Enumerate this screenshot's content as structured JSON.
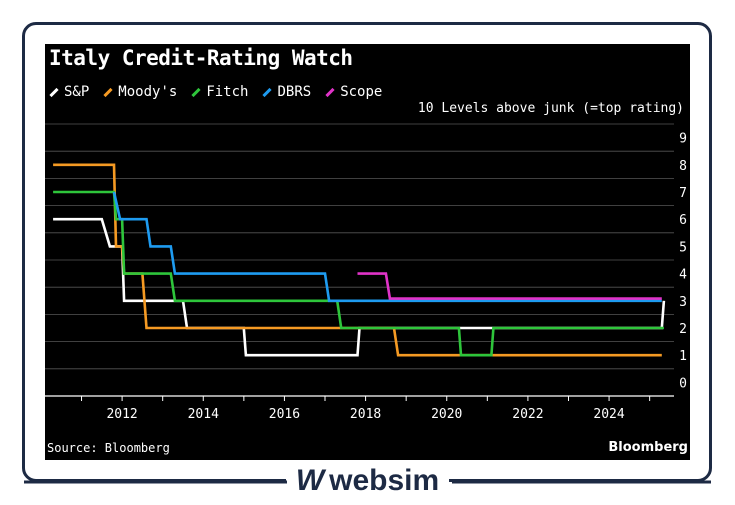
{
  "chart_data": {
    "type": "line",
    "title": "Italy Credit-Rating Watch",
    "ylabel": "10 Levels above junk (=top rating)",
    "xlim": [
      2010.1,
      2025.6
    ],
    "ylim": [
      -0.5,
      9.5
    ],
    "y_ticks": [
      "0",
      "1",
      "2",
      "3",
      "4",
      "5",
      "6",
      "7",
      "8",
      "9"
    ],
    "x_ticks": [
      "2012",
      "2014",
      "2016",
      "2018",
      "2020",
      "2022",
      "2024"
    ],
    "series": [
      {
        "name": "S&P",
        "color": "#ffffff",
        "points": [
          [
            2010.3,
            6
          ],
          [
            2011.5,
            6
          ],
          [
            2011.7,
            5
          ],
          [
            2012.0,
            5
          ],
          [
            2012.05,
            3
          ],
          [
            2013.5,
            3
          ],
          [
            2013.6,
            2
          ],
          [
            2015.0,
            2
          ],
          [
            2015.05,
            1
          ],
          [
            2017.8,
            1
          ],
          [
            2017.85,
            2
          ],
          [
            2025.3,
            2
          ],
          [
            2025.35,
            3
          ]
        ]
      },
      {
        "name": "Moody's",
        "color": "#f59a23",
        "points": [
          [
            2010.3,
            8
          ],
          [
            2011.8,
            8
          ],
          [
            2011.85,
            5
          ],
          [
            2012.0,
            5
          ],
          [
            2012.05,
            4
          ],
          [
            2012.5,
            4
          ],
          [
            2012.6,
            2
          ],
          [
            2018.7,
            2
          ],
          [
            2018.8,
            1
          ],
          [
            2025.3,
            1
          ]
        ]
      },
      {
        "name": "Fitch",
        "color": "#2ec53b",
        "points": [
          [
            2010.3,
            7
          ],
          [
            2011.8,
            7
          ],
          [
            2011.85,
            6
          ],
          [
            2012.0,
            6
          ],
          [
            2012.05,
            4
          ],
          [
            2013.2,
            4
          ],
          [
            2013.3,
            3
          ],
          [
            2017.3,
            3
          ],
          [
            2017.4,
            2
          ],
          [
            2020.3,
            2
          ],
          [
            2020.35,
            1
          ],
          [
            2021.1,
            1
          ],
          [
            2021.15,
            2
          ],
          [
            2025.35,
            2
          ]
        ]
      },
      {
        "name": "DBRS",
        "color": "#1e9bf0",
        "points": [
          [
            2011.8,
            7
          ],
          [
            2011.95,
            6
          ],
          [
            2012.6,
            6
          ],
          [
            2012.7,
            5
          ],
          [
            2013.2,
            5
          ],
          [
            2013.3,
            4
          ],
          [
            2017.0,
            4
          ],
          [
            2017.1,
            3
          ],
          [
            2025.3,
            3
          ]
        ]
      },
      {
        "name": "Scope",
        "color": "#e033c8",
        "points": [
          [
            2017.8,
            4
          ],
          [
            2018.5,
            4
          ],
          [
            2018.6,
            3.08
          ],
          [
            2025.3,
            3.08
          ]
        ]
      }
    ],
    "grid": true,
    "legend": "top-left"
  },
  "footer": {
    "source": "Source: Bloomberg",
    "brand": "Bloomberg"
  },
  "watermark": {
    "text": "websim",
    "mark": "W"
  }
}
